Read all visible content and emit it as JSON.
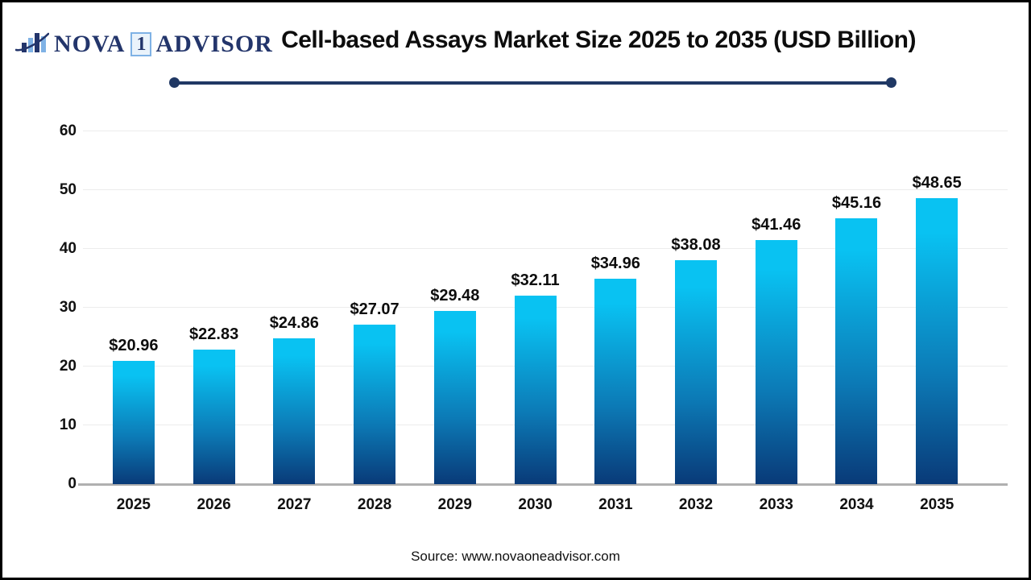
{
  "logo": {
    "nova": "NOVA",
    "one": "1",
    "advisor": "ADVISOR"
  },
  "header": {
    "title": "Cell-based Assays Market Size 2025 to 2035 (USD Billion)"
  },
  "chart_data": {
    "type": "bar",
    "title": "Cell-based Assays Market Size 2025 to 2035 (USD Billion)",
    "categories": [
      "2025",
      "2026",
      "2027",
      "2028",
      "2029",
      "2030",
      "2031",
      "2032",
      "2033",
      "2034",
      "2035"
    ],
    "values": [
      20.96,
      22.83,
      24.86,
      27.07,
      29.48,
      32.11,
      34.96,
      38.08,
      41.46,
      45.16,
      48.65
    ],
    "data_labels": [
      "$20.96",
      "$22.83",
      "$24.86",
      "$27.07",
      "$29.48",
      "$32.11",
      "$34.96",
      "$38.08",
      "$41.46",
      "$45.16",
      "$48.65"
    ],
    "xlabel": "",
    "ylabel": "",
    "ylim": [
      0,
      60
    ],
    "yticks": [
      0,
      10,
      20,
      30,
      40,
      50,
      60
    ],
    "grid": true,
    "legend": false,
    "bar_color_top": "#09c2f2",
    "bar_color_mid": "#0c7ab6",
    "bar_color_bottom": "#093a78"
  },
  "footer": {
    "source": "Source: www.novaoneadvisor.com"
  },
  "colors": {
    "accent_navy": "#203864",
    "logo_navy": "#23356b",
    "logo_light_blue": "#7fb2e5",
    "gridline": "#ececec",
    "axis_line": "#b0b0b0"
  }
}
